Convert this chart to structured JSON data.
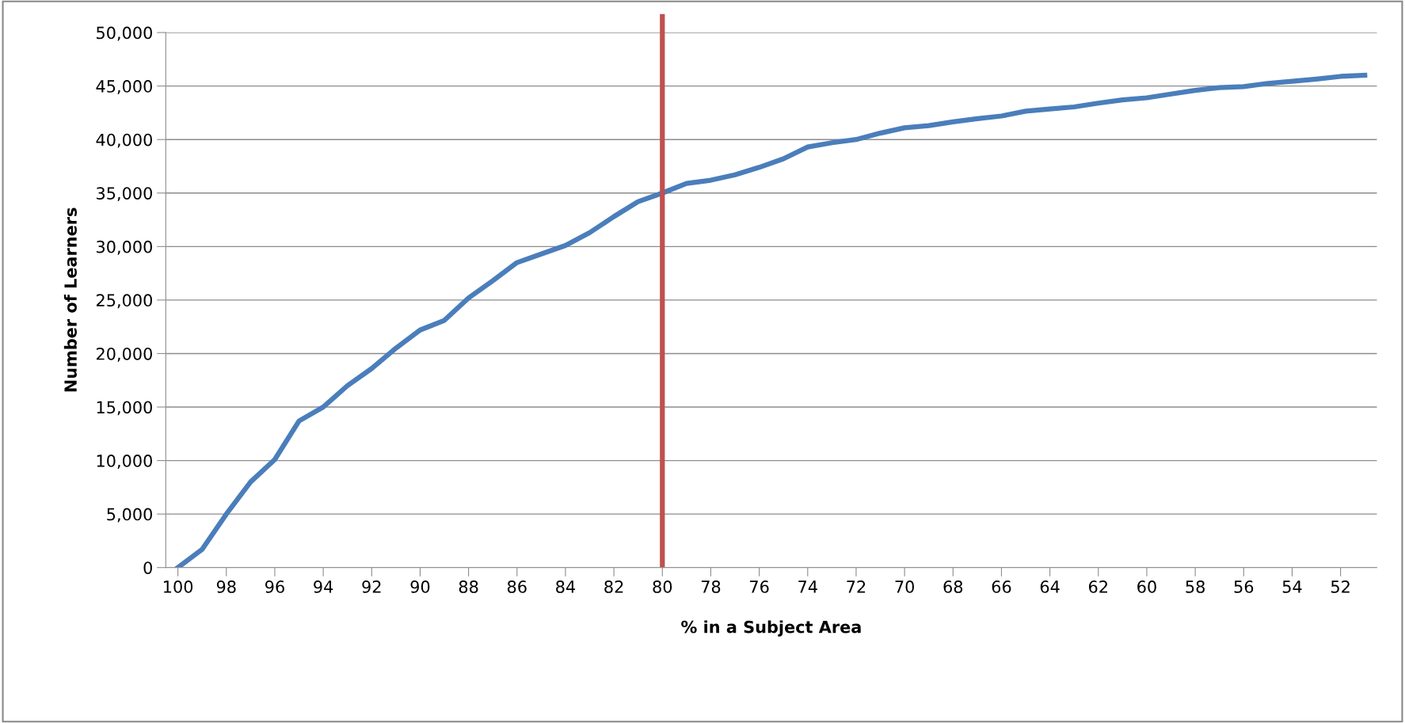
{
  "chart_data": {
    "type": "line",
    "xlabel": "% in a Subject Area",
    "ylabel": "Number of Learners",
    "x": [
      100,
      99,
      98,
      97,
      96,
      95,
      94,
      93,
      92,
      91,
      90,
      89,
      88,
      87,
      86,
      85,
      84,
      83,
      82,
      81,
      80,
      79,
      78,
      77,
      76,
      75,
      74,
      73,
      72,
      71,
      70,
      69,
      68,
      67,
      66,
      65,
      64,
      63,
      62,
      61,
      60,
      59,
      58,
      57,
      56,
      55,
      54,
      53,
      52,
      51
    ],
    "series": [
      {
        "color": "#4a7ebb",
        "values": [
          0,
          1700,
          5000,
          8000,
          10100,
          13700,
          15000,
          17000,
          18600,
          20500,
          22200,
          23100,
          25200,
          26800,
          28500,
          29300,
          30100,
          31300,
          32800,
          34200,
          35000,
          35900,
          36200,
          36700,
          37400,
          38200,
          39300,
          39700,
          40000,
          40600,
          41100,
          41300,
          41650,
          41950,
          42200,
          42650,
          42850,
          43050,
          43400,
          43700,
          43900,
          44250,
          44600,
          44850,
          44950,
          45250,
          45450,
          45650,
          45900,
          46000
        ]
      }
    ],
    "xlim": [
      100.5,
      50.5
    ],
    "xticks": [
      100,
      98,
      96,
      94,
      92,
      90,
      88,
      86,
      84,
      82,
      80,
      78,
      76,
      74,
      72,
      70,
      68,
      66,
      64,
      62,
      60,
      58,
      56,
      54,
      52
    ],
    "ylim": [
      0,
      50000
    ],
    "yticks": [
      {
        "value": 0,
        "label": "0"
      },
      {
        "value": 5000,
        "label": "5,000"
      },
      {
        "value": 10000,
        "label": "10,000"
      },
      {
        "value": 15000,
        "label": "15,000"
      },
      {
        "value": 20000,
        "label": "20,000"
      },
      {
        "value": 25000,
        "label": "25,000"
      },
      {
        "value": 30000,
        "label": "30,000"
      },
      {
        "value": 35000,
        "label": "35,000"
      },
      {
        "value": 40000,
        "label": "40,000"
      },
      {
        "value": 45000,
        "label": "45,000"
      },
      {
        "value": 50000,
        "label": "50,000"
      }
    ],
    "grid": "y",
    "marker": "none",
    "line_style": "solid",
    "ref_lines": [
      {
        "axis": "x",
        "value": 80,
        "color": "#c0504d",
        "line_style": "solid"
      }
    ]
  }
}
